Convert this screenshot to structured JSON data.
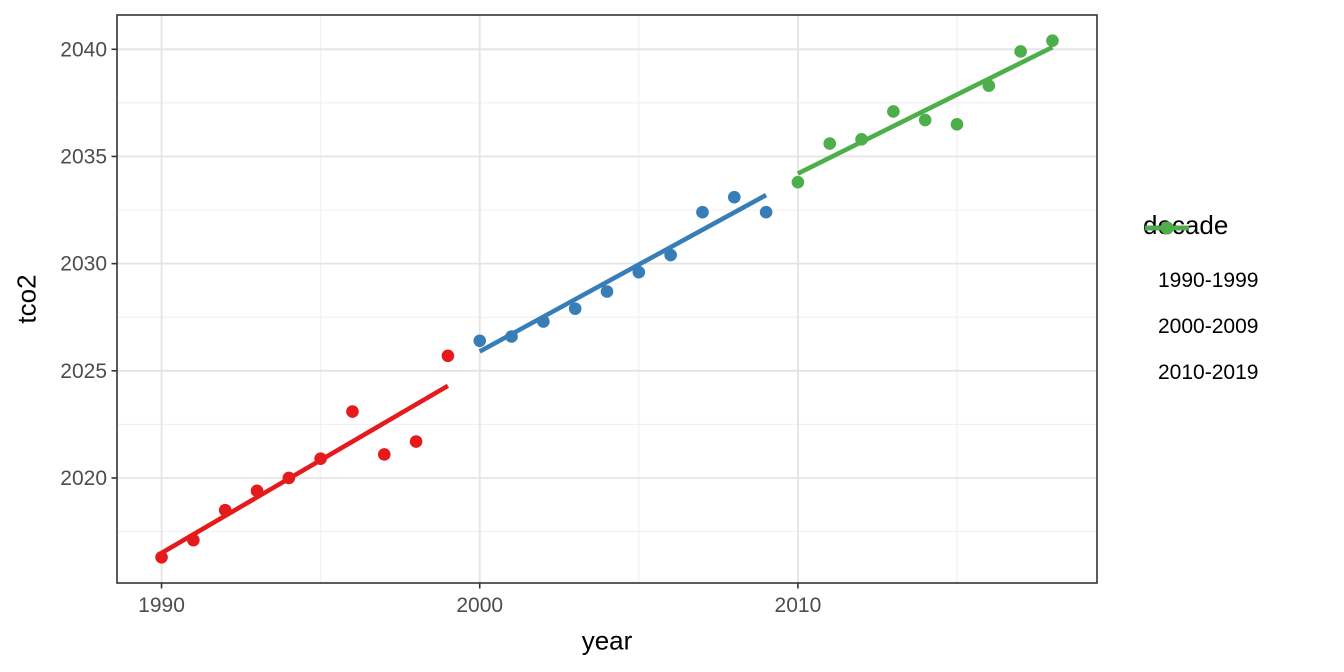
{
  "chart_data": {
    "type": "scatter",
    "title": "",
    "xlabel": "year",
    "ylabel": "tco2",
    "x_ticks": [
      1990,
      2000,
      2010
    ],
    "y_ticks": [
      2020,
      2025,
      2030,
      2035,
      2040
    ],
    "x_domain": [
      1988.6,
      2019.4
    ],
    "y_domain": [
      2015.1,
      2041.6
    ],
    "x_minor_gridlines": [
      1995,
      2005,
      2015
    ],
    "y_minor_gridlines": [
      2017.5,
      2022.5,
      2027.5,
      2032.5,
      2037.5
    ],
    "grid": "on",
    "legend_position": "right",
    "series": [
      {
        "name": "1990-1999",
        "color": "#E41A1C",
        "points": [
          [
            1990,
            2016.3
          ],
          [
            1991,
            2017.1
          ],
          [
            1992,
            2018.5
          ],
          [
            1993,
            2019.4
          ],
          [
            1994,
            2020.0
          ],
          [
            1995,
            2020.9
          ],
          [
            1996,
            2023.1
          ],
          [
            1997,
            2021.1
          ],
          [
            1998,
            2021.7
          ],
          [
            1999,
            2025.7
          ]
        ],
        "trend": [
          [
            1990,
            2016.5
          ],
          [
            1999,
            2024.3
          ]
        ]
      },
      {
        "name": "2000-2009",
        "color": "#377EB8",
        "points": [
          [
            2000,
            2026.4
          ],
          [
            2001,
            2026.6
          ],
          [
            2002,
            2027.3
          ],
          [
            2003,
            2027.9
          ],
          [
            2004,
            2028.7
          ],
          [
            2005,
            2029.6
          ],
          [
            2006,
            2030.4
          ],
          [
            2007,
            2032.4
          ],
          [
            2008,
            2033.1
          ],
          [
            2009,
            2032.4
          ]
        ],
        "trend": [
          [
            2000,
            2025.9
          ],
          [
            2009,
            2033.2
          ]
        ]
      },
      {
        "name": "2010-2019",
        "color": "#4DAF4A",
        "points": [
          [
            2010,
            2033.8
          ],
          [
            2011,
            2035.6
          ],
          [
            2012,
            2035.8
          ],
          [
            2013,
            2037.1
          ],
          [
            2014,
            2036.7
          ],
          [
            2015,
            2036.5
          ],
          [
            2016,
            2038.3
          ],
          [
            2017,
            2039.9
          ],
          [
            2018,
            2040.4
          ]
        ],
        "trend": [
          [
            2010,
            2034.2
          ],
          [
            2018,
            2040.1
          ]
        ]
      }
    ]
  },
  "legend": {
    "title": "decade",
    "entries": [
      "1990-1999",
      "2000-2009",
      "2010-2019"
    ]
  },
  "axes": {
    "x_title": "year",
    "y_title": "tco2"
  },
  "colors": {
    "panel_border": "#333333",
    "major_gridline": "#e4e4e4",
    "minor_gridline": "#f1f1f1",
    "tick_mark": "#333333",
    "tick_label": "#4d4d4d",
    "background": "#ffffff"
  }
}
